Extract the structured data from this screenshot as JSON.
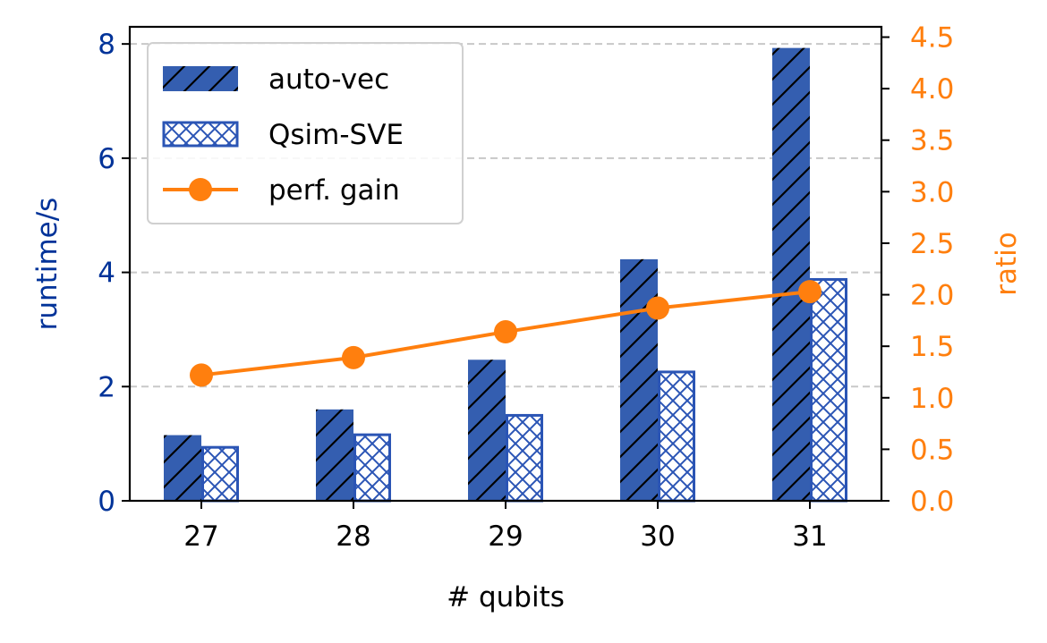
{
  "chart_data": {
    "type": "bar",
    "x_axis": {
      "label": "# qubits",
      "categories": [
        "27",
        "28",
        "29",
        "30",
        "31"
      ]
    },
    "y_axis_left": {
      "label": "runtime/s",
      "range": [
        0,
        8.3
      ],
      "ticks": [
        0,
        2,
        4,
        6,
        8
      ],
      "color": "#003399"
    },
    "y_axis_right": {
      "label": "ratio",
      "range": [
        0,
        4.6
      ],
      "ticks": [
        "0.0",
        "0.5",
        "1.0",
        "1.5",
        "2.0",
        "2.5",
        "3.0",
        "3.5",
        "4.0",
        "4.5"
      ],
      "color": "#ff7f0e"
    },
    "series": [
      {
        "name": "auto-vec",
        "type": "bar",
        "axis": "left",
        "hatch": "diagonal",
        "color": "#345eb0",
        "values": [
          1.15,
          1.6,
          2.47,
          4.23,
          7.93
        ]
      },
      {
        "name": "Qsim-SVE",
        "type": "bar",
        "axis": "left",
        "hatch": "crosshatch",
        "color": "#2b55b5",
        "values": [
          0.96,
          1.18,
          1.52,
          2.28,
          3.9
        ]
      },
      {
        "name": "perf. gain",
        "type": "line",
        "axis": "right",
        "marker": "circle",
        "color": "#ff7f0e",
        "values": [
          1.22,
          1.39,
          1.64,
          1.87,
          2.03
        ]
      }
    ],
    "grid": "horizontal-dashed-left-axis",
    "legend_position": "top-left"
  }
}
